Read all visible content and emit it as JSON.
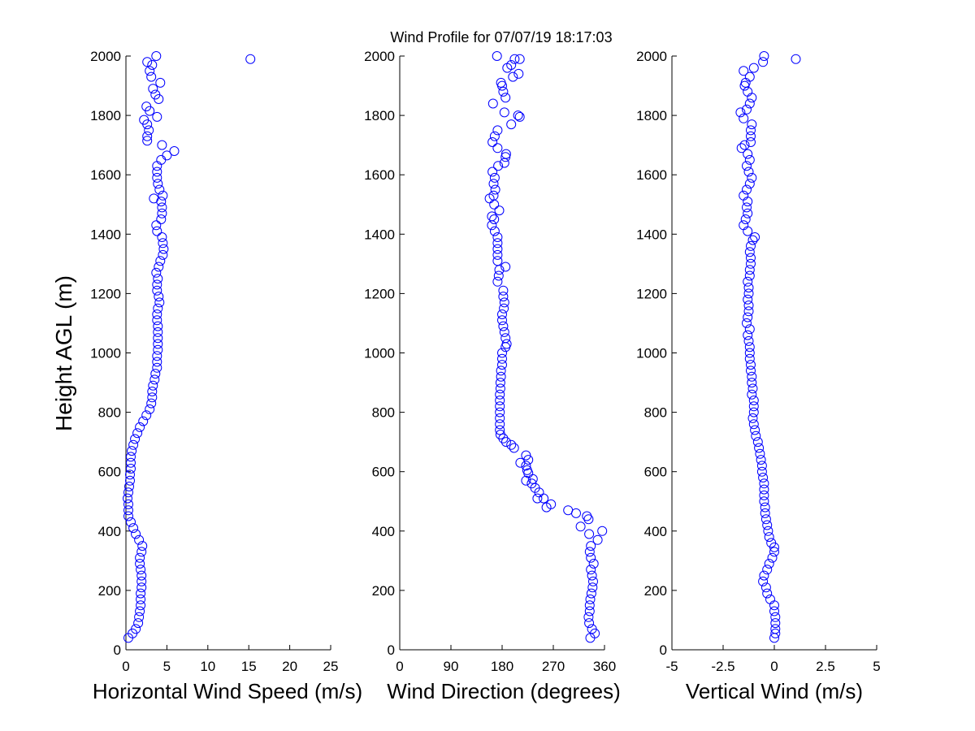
{
  "title": "Wind Profile for  07/07/19 18:17:03",
  "ylabel": "Height AGL (m)",
  "colors": {
    "marker": "#0000ff",
    "axis": "#000000",
    "background": "#ffffff"
  },
  "chart_data": [
    {
      "type": "scatter",
      "xlabel": "Horizontal Wind Speed (m/s)",
      "ylabel": "Height AGL (m)",
      "xlim": [
        0,
        25
      ],
      "ylim": [
        0,
        2000
      ],
      "xticks": [
        0,
        5,
        10,
        15,
        20,
        25
      ],
      "xtick_labels": [
        "0",
        "5",
        "10",
        "15",
        "20",
        "25"
      ],
      "yticks": [
        0,
        200,
        400,
        600,
        800,
        1000,
        1200,
        1400,
        1600,
        1800,
        2000
      ],
      "ytick_labels": [
        "0",
        "200",
        "400",
        "600",
        "800",
        "1000",
        "1200",
        "1400",
        "1600",
        "1800",
        "2000"
      ],
      "grid": false,
      "marker": "open-circle",
      "points": [
        [
          0.3,
          40
        ],
        [
          0.8,
          55
        ],
        [
          1.2,
          70
        ],
        [
          1.5,
          90
        ],
        [
          1.6,
          110
        ],
        [
          1.7,
          130
        ],
        [
          1.8,
          150
        ],
        [
          1.8,
          170
        ],
        [
          1.8,
          190
        ],
        [
          1.9,
          210
        ],
        [
          1.9,
          230
        ],
        [
          1.9,
          250
        ],
        [
          1.8,
          270
        ],
        [
          1.7,
          290
        ],
        [
          1.7,
          310
        ],
        [
          1.9,
          330
        ],
        [
          2.0,
          350
        ],
        [
          1.6,
          370
        ],
        [
          1.2,
          390
        ],
        [
          0.9,
          410
        ],
        [
          0.6,
          430
        ],
        [
          0.3,
          450
        ],
        [
          0.3,
          470
        ],
        [
          0.3,
          490
        ],
        [
          0.2,
          510
        ],
        [
          0.3,
          530
        ],
        [
          0.4,
          550
        ],
        [
          0.5,
          570
        ],
        [
          0.5,
          590
        ],
        [
          0.6,
          610
        ],
        [
          0.6,
          630
        ],
        [
          0.6,
          650
        ],
        [
          0.7,
          670
        ],
        [
          0.9,
          690
        ],
        [
          1.1,
          710
        ],
        [
          1.4,
          730
        ],
        [
          1.7,
          750
        ],
        [
          2.1,
          770
        ],
        [
          2.5,
          790
        ],
        [
          2.9,
          810
        ],
        [
          3.1,
          830
        ],
        [
          3.2,
          850
        ],
        [
          3.2,
          870
        ],
        [
          3.3,
          890
        ],
        [
          3.5,
          910
        ],
        [
          3.6,
          930
        ],
        [
          3.8,
          950
        ],
        [
          3.8,
          970
        ],
        [
          3.8,
          990
        ],
        [
          3.9,
          1010
        ],
        [
          3.9,
          1030
        ],
        [
          3.9,
          1050
        ],
        [
          3.9,
          1070
        ],
        [
          3.9,
          1090
        ],
        [
          3.8,
          1110
        ],
        [
          3.8,
          1130
        ],
        [
          3.9,
          1150
        ],
        [
          4.1,
          1170
        ],
        [
          4.0,
          1190
        ],
        [
          3.8,
          1210
        ],
        [
          3.8,
          1230
        ],
        [
          3.9,
          1250
        ],
        [
          3.7,
          1270
        ],
        [
          4.0,
          1290
        ],
        [
          4.2,
          1310
        ],
        [
          4.5,
          1330
        ],
        [
          4.6,
          1350
        ],
        [
          4.5,
          1370
        ],
        [
          4.4,
          1390
        ],
        [
          3.8,
          1410
        ],
        [
          3.7,
          1430
        ],
        [
          4.3,
          1450
        ],
        [
          4.4,
          1470
        ],
        [
          4.4,
          1490
        ],
        [
          4.3,
          1510
        ],
        [
          3.4,
          1520
        ],
        [
          4.5,
          1530
        ],
        [
          4.1,
          1550
        ],
        [
          3.9,
          1570
        ],
        [
          3.8,
          1590
        ],
        [
          3.8,
          1610
        ],
        [
          3.8,
          1630
        ],
        [
          4.3,
          1650
        ],
        [
          5.0,
          1665
        ],
        [
          5.9,
          1680
        ],
        [
          4.4,
          1700
        ],
        [
          2.6,
          1715
        ],
        [
          2.6,
          1730
        ],
        [
          2.8,
          1750
        ],
        [
          2.6,
          1770
        ],
        [
          2.2,
          1785
        ],
        [
          3.8,
          1795
        ],
        [
          2.9,
          1815
        ],
        [
          2.5,
          1830
        ],
        [
          4.0,
          1855
        ],
        [
          3.6,
          1870
        ],
        [
          3.3,
          1890
        ],
        [
          4.2,
          1910
        ],
        [
          3.1,
          1930
        ],
        [
          2.9,
          1950
        ],
        [
          3.2,
          1970
        ],
        [
          2.6,
          1980
        ],
        [
          3.7,
          2000
        ],
        [
          15.2,
          1990
        ]
      ]
    },
    {
      "type": "scatter",
      "xlabel": "Wind Direction (degrees)",
      "ylabel": "",
      "xlim": [
        0,
        360
      ],
      "ylim": [
        0,
        2000
      ],
      "xticks": [
        0,
        90,
        180,
        270,
        360
      ],
      "xtick_labels": [
        "0",
        "90",
        "180",
        "270",
        "360"
      ],
      "yticks": [
        0,
        200,
        400,
        600,
        800,
        1000,
        1200,
        1400,
        1600,
        1800,
        2000
      ],
      "ytick_labels": [
        "0",
        "200",
        "400",
        "600",
        "800",
        "1000",
        "1200",
        "1400",
        "1600",
        "1800",
        "2000"
      ],
      "grid": false,
      "marker": "open-circle",
      "points": [
        [
          335,
          40
        ],
        [
          343,
          55
        ],
        [
          338,
          70
        ],
        [
          333,
          90
        ],
        [
          332,
          110
        ],
        [
          334,
          130
        ],
        [
          334,
          150
        ],
        [
          335,
          170
        ],
        [
          337,
          190
        ],
        [
          339,
          210
        ],
        [
          340,
          230
        ],
        [
          338,
          250
        ],
        [
          336,
          270
        ],
        [
          341,
          290
        ],
        [
          336,
          310
        ],
        [
          334,
          330
        ],
        [
          336,
          350
        ],
        [
          348,
          370
        ],
        [
          333,
          390
        ],
        [
          356,
          400
        ],
        [
          318,
          415
        ],
        [
          332,
          440
        ],
        [
          329,
          450
        ],
        [
          310,
          460
        ],
        [
          296,
          470
        ],
        [
          266,
          490
        ],
        [
          258,
          480
        ],
        [
          253,
          510
        ],
        [
          242,
          510
        ],
        [
          245,
          530
        ],
        [
          238,
          545
        ],
        [
          232,
          560
        ],
        [
          234,
          575
        ],
        [
          222,
          570
        ],
        [
          226,
          595
        ],
        [
          224,
          605
        ],
        [
          222,
          620
        ],
        [
          212,
          630
        ],
        [
          226,
          640
        ],
        [
          222,
          655
        ],
        [
          201,
          680
        ],
        [
          196,
          690
        ],
        [
          187,
          700
        ],
        [
          182,
          712
        ],
        [
          177,
          725
        ],
        [
          176,
          740
        ],
        [
          176,
          760
        ],
        [
          176,
          780
        ],
        [
          176,
          800
        ],
        [
          176,
          820
        ],
        [
          176,
          840
        ],
        [
          176,
          860
        ],
        [
          177,
          880
        ],
        [
          177,
          900
        ],
        [
          178,
          920
        ],
        [
          178,
          940
        ],
        [
          180,
          960
        ],
        [
          180,
          980
        ],
        [
          180,
          1000
        ],
        [
          186,
          1020
        ],
        [
          188,
          1030
        ],
        [
          186,
          1050
        ],
        [
          184,
          1070
        ],
        [
          182,
          1090
        ],
        [
          180,
          1110
        ],
        [
          180,
          1130
        ],
        [
          183,
          1150
        ],
        [
          184,
          1170
        ],
        [
          182,
          1190
        ],
        [
          182,
          1210
        ],
        [
          172,
          1240
        ],
        [
          174,
          1260
        ],
        [
          186,
          1290
        ],
        [
          175,
          1280
        ],
        [
          172,
          1310
        ],
        [
          172,
          1330
        ],
        [
          172,
          1350
        ],
        [
          172,
          1370
        ],
        [
          172,
          1390
        ],
        [
          167,
          1410
        ],
        [
          162,
          1430
        ],
        [
          166,
          1450
        ],
        [
          162,
          1460
        ],
        [
          175,
          1480
        ],
        [
          166,
          1500
        ],
        [
          158,
          1520
        ],
        [
          165,
          1530
        ],
        [
          168,
          1550
        ],
        [
          165,
          1570
        ],
        [
          167,
          1590
        ],
        [
          163,
          1610
        ],
        [
          173,
          1630
        ],
        [
          184,
          1640
        ],
        [
          186,
          1660
        ],
        [
          187,
          1670
        ],
        [
          172,
          1690
        ],
        [
          163,
          1710
        ],
        [
          167,
          1730
        ],
        [
          172,
          1750
        ],
        [
          196,
          1770
        ],
        [
          211,
          1795
        ],
        [
          208,
          1800
        ],
        [
          184,
          1810
        ],
        [
          164,
          1840
        ],
        [
          186,
          1860
        ],
        [
          182,
          1880
        ],
        [
          180,
          1900
        ],
        [
          178,
          1910
        ],
        [
          199,
          1930
        ],
        [
          209,
          1940
        ],
        [
          189,
          1960
        ],
        [
          196,
          1970
        ],
        [
          202,
          1990
        ],
        [
          211,
          1990
        ],
        [
          171,
          2000
        ]
      ]
    },
    {
      "type": "scatter",
      "xlabel": "Vertical Wind (m/s)",
      "ylabel": "",
      "xlim": [
        -5,
        5
      ],
      "ylim": [
        0,
        2000
      ],
      "xticks": [
        -5,
        -2.5,
        0,
        2.5,
        5
      ],
      "xtick_labels": [
        "-5",
        "-2.5",
        "0",
        "2.5",
        "5"
      ],
      "yticks": [
        0,
        200,
        400,
        600,
        800,
        1000,
        1200,
        1400,
        1600,
        1800,
        2000
      ],
      "ytick_labels": [
        "0",
        "200",
        "400",
        "600",
        "800",
        "1000",
        "1200",
        "1400",
        "1600",
        "1800",
        "2000"
      ],
      "grid": false,
      "marker": "open-circle",
      "points": [
        [
          0.0,
          40
        ],
        [
          0.05,
          55
        ],
        [
          0.05,
          70
        ],
        [
          0.05,
          90
        ],
        [
          0.05,
          110
        ],
        [
          0.0,
          130
        ],
        [
          0.0,
          150
        ],
        [
          -0.2,
          170
        ],
        [
          -0.35,
          190
        ],
        [
          -0.4,
          210
        ],
        [
          -0.55,
          230
        ],
        [
          -0.5,
          250
        ],
        [
          -0.35,
          270
        ],
        [
          -0.25,
          290
        ],
        [
          -0.1,
          310
        ],
        [
          0.0,
          330
        ],
        [
          0.0,
          345
        ],
        [
          -0.15,
          360
        ],
        [
          -0.25,
          380
        ],
        [
          -0.3,
          400
        ],
        [
          -0.35,
          420
        ],
        [
          -0.4,
          440
        ],
        [
          -0.45,
          460
        ],
        [
          -0.45,
          480
        ],
        [
          -0.5,
          500
        ],
        [
          -0.5,
          520
        ],
        [
          -0.5,
          540
        ],
        [
          -0.5,
          560
        ],
        [
          -0.55,
          580
        ],
        [
          -0.6,
          600
        ],
        [
          -0.6,
          620
        ],
        [
          -0.65,
          640
        ],
        [
          -0.7,
          660
        ],
        [
          -0.75,
          680
        ],
        [
          -0.8,
          700
        ],
        [
          -0.9,
          720
        ],
        [
          -0.95,
          740
        ],
        [
          -1.0,
          760
        ],
        [
          -1.05,
          780
        ],
        [
          -1.0,
          800
        ],
        [
          -1.0,
          820
        ],
        [
          -1.0,
          840
        ],
        [
          -1.1,
          860
        ],
        [
          -1.05,
          880
        ],
        [
          -1.1,
          900
        ],
        [
          -1.1,
          920
        ],
        [
          -1.15,
          940
        ],
        [
          -1.15,
          960
        ],
        [
          -1.2,
          980
        ],
        [
          -1.2,
          1000
        ],
        [
          -1.2,
          1020
        ],
        [
          -1.25,
          1040
        ],
        [
          -1.3,
          1060
        ],
        [
          -1.2,
          1080
        ],
        [
          -1.35,
          1100
        ],
        [
          -1.3,
          1120
        ],
        [
          -1.25,
          1140
        ],
        [
          -1.25,
          1160
        ],
        [
          -1.3,
          1180
        ],
        [
          -1.25,
          1200
        ],
        [
          -1.25,
          1220
        ],
        [
          -1.3,
          1240
        ],
        [
          -1.2,
          1260
        ],
        [
          -1.2,
          1280
        ],
        [
          -1.15,
          1300
        ],
        [
          -1.15,
          1320
        ],
        [
          -1.2,
          1340
        ],
        [
          -1.15,
          1360
        ],
        [
          -1.05,
          1380
        ],
        [
          -0.95,
          1390
        ],
        [
          -1.3,
          1410
        ],
        [
          -1.5,
          1430
        ],
        [
          -1.4,
          1450
        ],
        [
          -1.3,
          1470
        ],
        [
          -1.35,
          1490
        ],
        [
          -1.3,
          1510
        ],
        [
          -1.5,
          1530
        ],
        [
          -1.35,
          1550
        ],
        [
          -1.2,
          1570
        ],
        [
          -1.1,
          1590
        ],
        [
          -1.25,
          1610
        ],
        [
          -1.35,
          1630
        ],
        [
          -1.2,
          1650
        ],
        [
          -1.3,
          1670
        ],
        [
          -1.6,
          1690
        ],
        [
          -1.45,
          1700
        ],
        [
          -1.15,
          1710
        ],
        [
          -1.15,
          1730
        ],
        [
          -1.15,
          1750
        ],
        [
          -1.1,
          1770
        ],
        [
          -1.5,
          1790
        ],
        [
          -1.65,
          1810
        ],
        [
          -1.35,
          1820
        ],
        [
          -1.2,
          1840
        ],
        [
          -1.1,
          1860
        ],
        [
          -1.3,
          1880
        ],
        [
          -1.45,
          1900
        ],
        [
          -1.4,
          1910
        ],
        [
          -1.2,
          1930
        ],
        [
          -1.5,
          1950
        ],
        [
          -1.0,
          1960
        ],
        [
          -0.55,
          1980
        ],
        [
          -0.5,
          2000
        ],
        [
          1.05,
          1990
        ]
      ]
    }
  ]
}
